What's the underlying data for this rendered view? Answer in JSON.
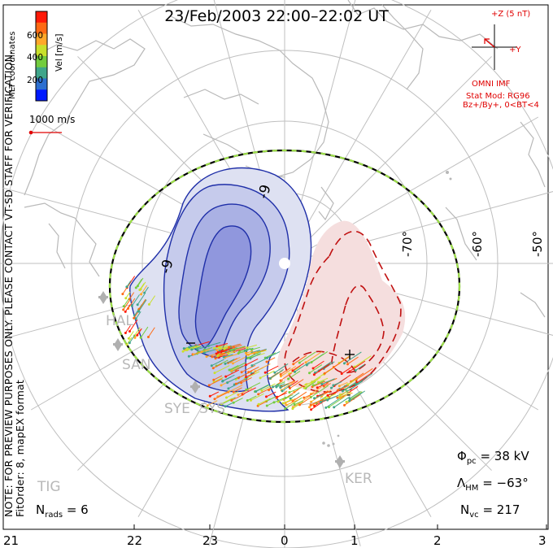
{
  "title": "23/Feb/2003 22:00–22:02 UT",
  "side_notes": {
    "left_note": "NOTE: FOR PREVIEW PURPOSES ONLY. PLEASE CONTACT VT-SD STAFF FOR VERIFICATION.",
    "fit_note": "FitOrder: 8, mapEX format",
    "coords": "MLT coordinates"
  },
  "colorbar": {
    "label": "Vel [m/s]",
    "ticks": [
      "600",
      "400",
      "200"
    ],
    "colors": [
      "#0019ff",
      "#2d6fd0",
      "#3fa58a",
      "#73cc3e",
      "#c8e02c",
      "#ffa82a",
      "#ff6a14",
      "#ff1a08"
    ]
  },
  "reference_vector": {
    "label": "1000 m/s"
  },
  "imf": {
    "z_label": "+Z (5 nT)",
    "y_label": "+Y",
    "source": "OMNI IMF",
    "model": "Stat Mod: RG96",
    "condition": "Bz+/By+, 0<BT<4"
  },
  "latitude_labels": [
    "-70°",
    "-60°",
    "-50°"
  ],
  "contour_labels": [
    "-9",
    "-9",
    "-"
  ],
  "stations": [
    "HAL",
    "SAN",
    "SYE",
    "SYS",
    "KER",
    "TIG"
  ],
  "stats": {
    "phi_symbol": "Φ",
    "phi_sub": "pc",
    "phi_value": "= 38 kV",
    "lambda_symbol": "Λ",
    "lambda_sub": "HM",
    "lambda_value": "= −63°",
    "nvc_symbol": "N",
    "nvc_sub": "vc",
    "nvc_value": "= 217",
    "nrads_symbol": "N",
    "nrads_sub": "rads",
    "nrads_value": "= 6"
  },
  "mlt_ticks": [
    "21",
    "22",
    "23",
    "0",
    "1",
    "2",
    "3"
  ],
  "style": {
    "negative_cell": "#1f2fa8",
    "positive_cell": "#c01010",
    "hmb": "#9ee04a",
    "coast": "#b8b8b8"
  }
}
